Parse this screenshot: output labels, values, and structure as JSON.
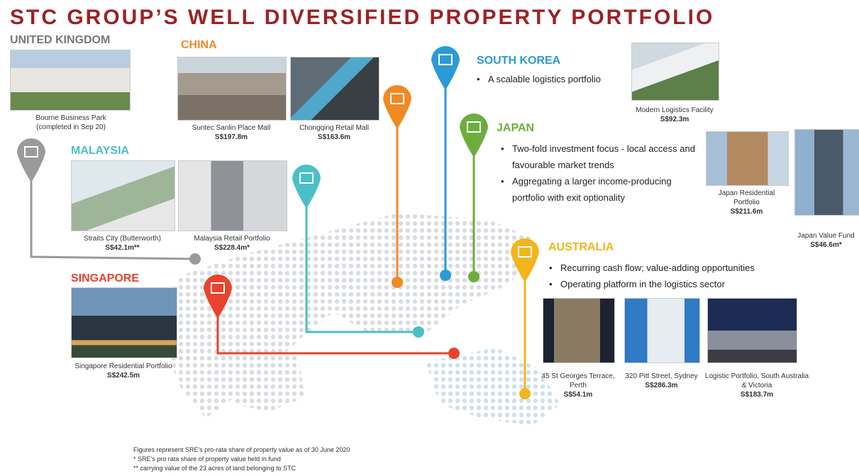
{
  "title": "STC GROUP’S WELL DIVERSIFIED PROPERTY PORTFOLIO",
  "regions": [
    {
      "name": "UNITED KINGDOM",
      "properties": [
        {
          "name": "Bourne Business Park (completed in Sep 20)"
        }
      ]
    },
    {
      "name": "CHINA",
      "properties": [
        {
          "name": "Suntec Sanlin Place Mall",
          "value": "S$197.8m"
        },
        {
          "name": "Chongqing Retail Mall",
          "value": "S$163.6m"
        }
      ]
    },
    {
      "name": "MALAYSIA",
      "properties": [
        {
          "name": "Straits City (Butterworth)",
          "value": "S$42.1m**"
        },
        {
          "name": "Malaysia Retail Portfolio",
          "value": "S$228.4m*"
        }
      ]
    },
    {
      "name": "SINGAPORE",
      "properties": [
        {
          "name": "Singapore Residential Portfolio",
          "value": "S$242.5m"
        }
      ]
    },
    {
      "name": "SOUTH KOREA",
      "bullets": [
        "A scalable logistics portfolio"
      ],
      "properties": [
        {
          "name": "Modern Logistics Facility",
          "value": "S$92.3m"
        }
      ]
    },
    {
      "name": "JAPAN",
      "bullets": [
        "Two-fold investment focus - local access and favourable market trends",
        "Aggregating a larger income-producing portfolio with exit optionality"
      ],
      "properties": [
        {
          "name": "Japan Residential Portfolio",
          "value": "S$211.6m"
        },
        {
          "name": "Japan Value Fund",
          "value": "S$46.6m*"
        }
      ]
    },
    {
      "name": "AUSTRALIA",
      "bullets": [
        "Recurring cash flow; value-adding opportunities",
        "Operating platform in the logistics sector"
      ],
      "properties": [
        {
          "name": "45 St Georges Terrace, Perth",
          "value": "S$54.1m"
        },
        {
          "name": "320 Pitt Street, Sydney",
          "value": "S$286.3m"
        },
        {
          "name": "Logistic Portfolio, South Australia & Victoria",
          "value": "S$183.7m"
        }
      ]
    }
  ],
  "footnotes": [
    "Figures represent SRE's pro-rata share of property value as of 30 June 2020",
    "* SRE's pro rata share of property value held in fund",
    "** carrying value of the 23 acres of land belonging to STC"
  ]
}
